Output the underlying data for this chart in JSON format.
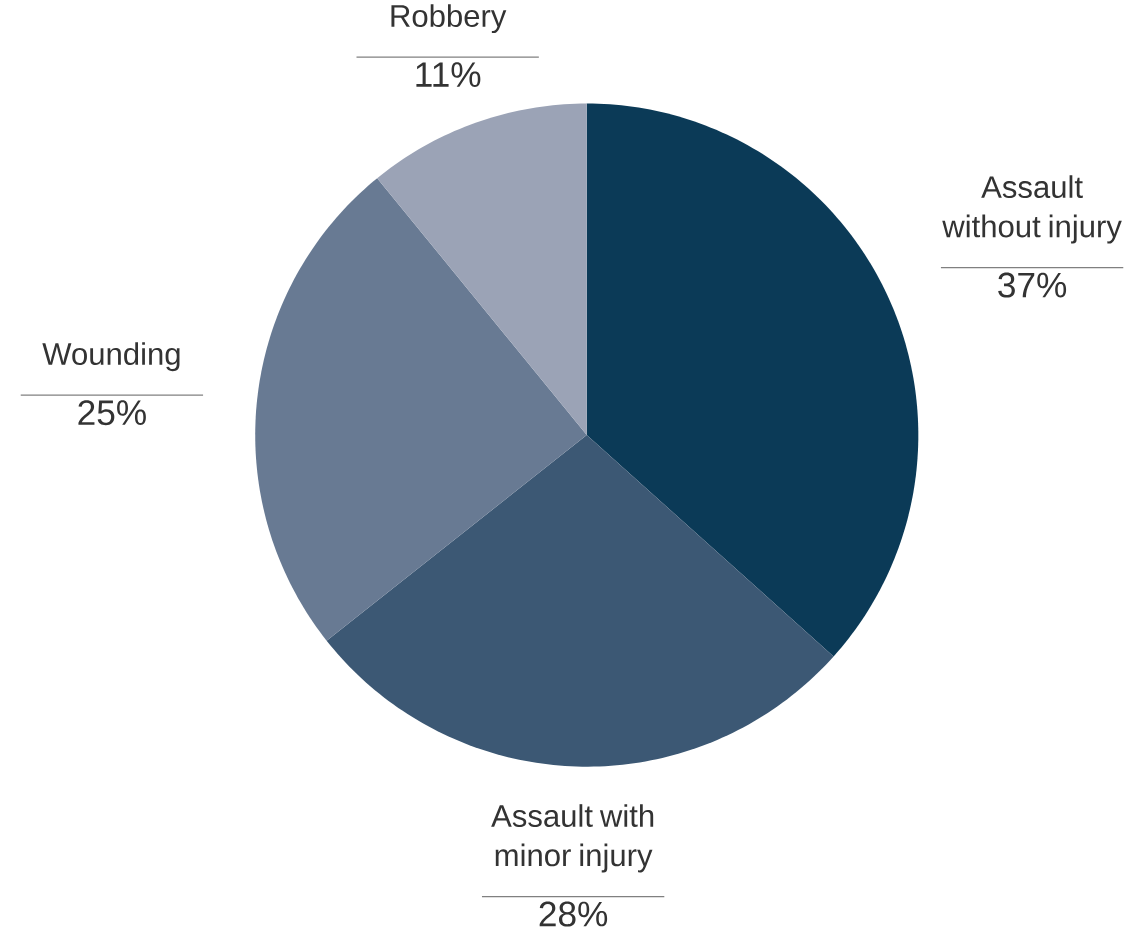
{
  "chart_data": {
    "type": "pie",
    "categories": [
      "Assault without injury",
      "Assault with minor injury",
      "Wounding",
      "Robbery"
    ],
    "values": [
      37,
      28,
      25,
      11
    ],
    "colors": [
      "#0b3a57",
      "#3c5874",
      "#687a93",
      "#9ba3b6"
    ],
    "value_labels": [
      "37%",
      "28%",
      "25%",
      "11%"
    ]
  }
}
